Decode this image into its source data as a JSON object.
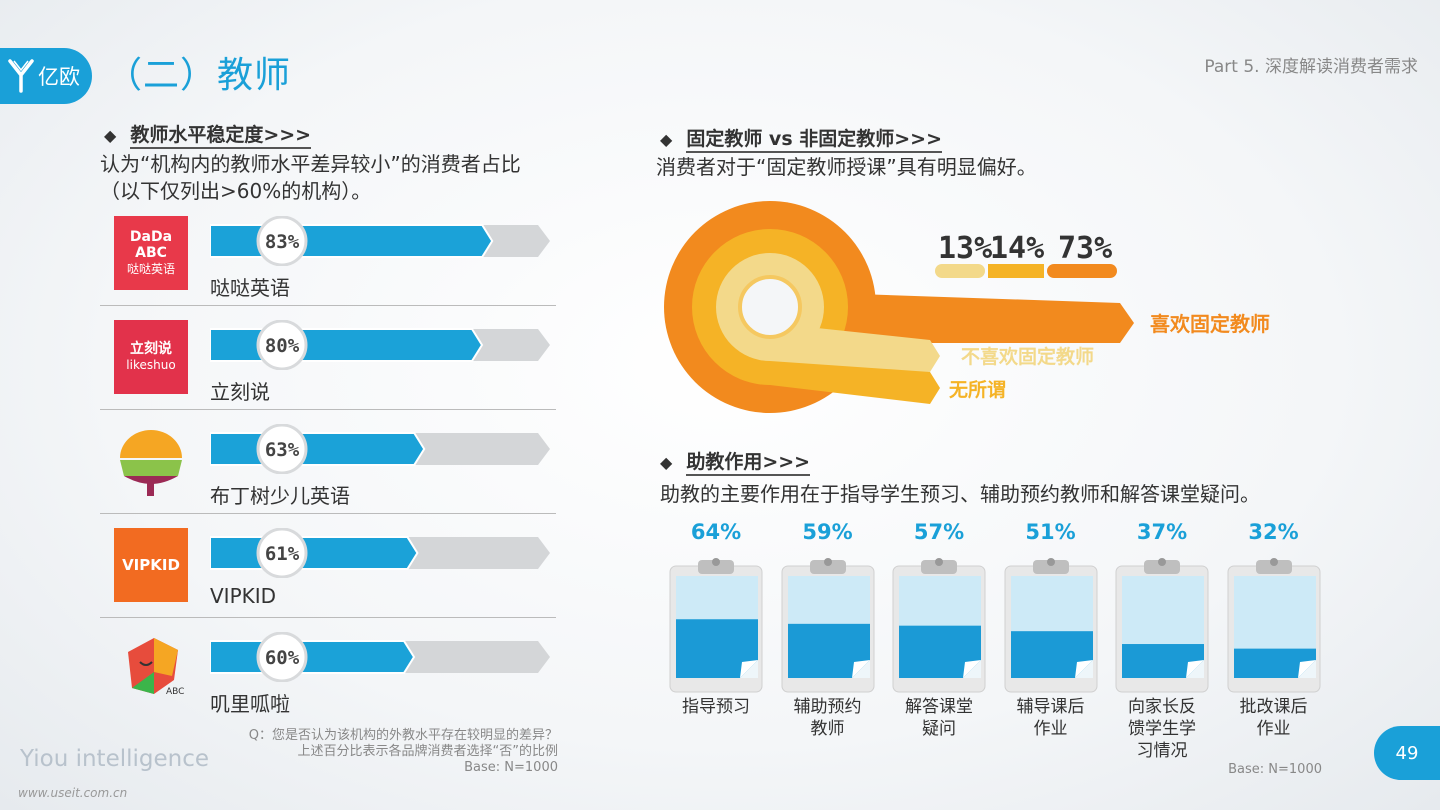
{
  "header": {
    "logo_text": "亿欧",
    "title": "（二）教师",
    "part_label": "Part 5. 深度解读消费者需求"
  },
  "left": {
    "heading": "教师水平稳定度>>>",
    "subtitle_line1": "认为“机构内的教师水平差异较小”的消费者占比",
    "subtitle_line2": "（以下仅列出>60%的机构）。",
    "footnote_line1": "Q：您是否认为该机构的外教水平存在较明显的差异？",
    "footnote_line2": "上述百分比表示各品牌消费者选择“否”的比例",
    "footnote_base": "Base: N=1000"
  },
  "brands": [
    {
      "name": "哒哒英语",
      "value": 83,
      "label": "83%",
      "logo_line1": "DaDa ABC",
      "logo_line2": "哒哒英语",
      "logo_color": "#e8394a"
    },
    {
      "name": "立刻说",
      "value": 80,
      "label": "80%",
      "logo_line1": "立刻说",
      "logo_line2": "likeshuo",
      "logo_color": "#e2324b"
    },
    {
      "name": "布丁树少儿英语",
      "value": 63,
      "label": "63%",
      "logo_line1": "",
      "logo_line2": "",
      "logo_color": "#f5a623"
    },
    {
      "name": "VIPKID",
      "value": 61,
      "label": "61%",
      "logo_line1": "VIPKID",
      "logo_line2": "",
      "logo_color": "#f26b21"
    },
    {
      "name": "叽里呱啦",
      "value": 60,
      "label": "60%",
      "logo_line1": "",
      "logo_line2": "",
      "logo_color": "#3bb54a"
    }
  ],
  "right_top": {
    "heading": "固定教师 vs 非固定教师>>>",
    "subtitle": "消费者对于“固定教师授课”具有明显偏好。",
    "legend_labels": [
      "13%",
      "14%",
      "73%"
    ],
    "legend_colors": [
      "#f3d98a",
      "#f5b326",
      "#f28a1e"
    ],
    "labels": {
      "prefer": "喜欢固定教师",
      "dislike": "不喜欢固定教师",
      "indifferent": "无所谓"
    }
  },
  "right_bottom": {
    "heading": "助教作用>>>",
    "subtitle": "助教的主要作用在于指导学生预习、辅助预约教师和解答课堂疑问。",
    "footnote_base": "Base: N=1000"
  },
  "chart_data": [
    {
      "type": "bar",
      "orientation": "horizontal",
      "categories": [
        "哒哒英语",
        "立刻说",
        "布丁树少儿英语",
        "VIPKID",
        "叽里呱啦"
      ],
      "values": [
        83,
        80,
        63,
        61,
        60
      ],
      "ylim": [
        0,
        100
      ]
    },
    {
      "type": "pie",
      "categories": [
        "不喜欢固定教师",
        "无所谓",
        "喜欢固定教师"
      ],
      "values": [
        13,
        14,
        73
      ]
    },
    {
      "type": "bar",
      "categories": [
        "指导预习",
        "辅助预约教师",
        "解答课堂疑问",
        "辅导课后作业",
        "向家长反馈学生学习情况",
        "批改课后作业"
      ],
      "values": [
        64,
        59,
        57,
        51,
        37,
        32
      ],
      "labels": [
        "64%",
        "59%",
        "57%",
        "51%",
        "37%",
        "32%"
      ],
      "ylim": [
        0,
        100
      ]
    }
  ],
  "assistant_items": [
    {
      "value": 64,
      "label": "64%",
      "lines": [
        "指导预习"
      ]
    },
    {
      "value": 59,
      "label": "59%",
      "lines": [
        "辅助预约",
        "教师"
      ]
    },
    {
      "value": 57,
      "label": "57%",
      "lines": [
        "解答课堂",
        "疑问"
      ]
    },
    {
      "value": 51,
      "label": "51%",
      "lines": [
        "辅导课后",
        "作业"
      ]
    },
    {
      "value": 37,
      "label": "37%",
      "lines": [
        "向家长反",
        "馈学生学",
        "习情况"
      ]
    },
    {
      "value": 32,
      "label": "32%",
      "lines": [
        "批改课后",
        "作业"
      ]
    }
  ],
  "footer": {
    "brand_text": "Yiou intelligence",
    "watermark": "www.useit.com.cn",
    "page_number": "49"
  }
}
